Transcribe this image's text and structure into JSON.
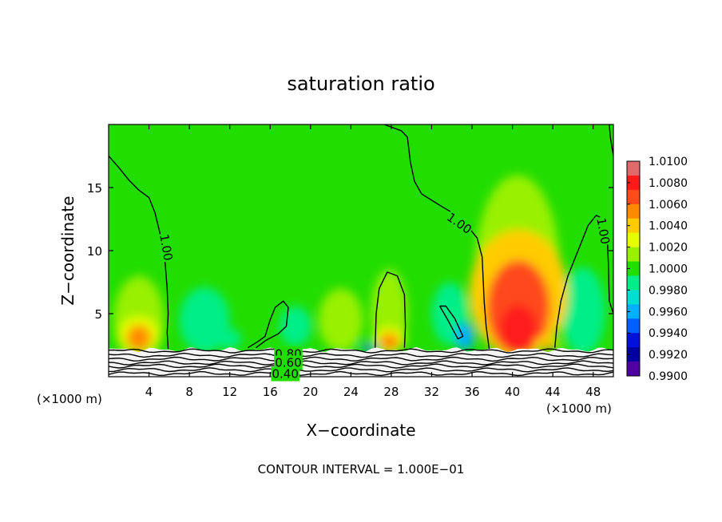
{
  "chart_data": {
    "type": "heatmap",
    "title": "saturation ratio",
    "xlabel": "X−coordinate",
    "ylabel": "Z−coordinate",
    "x_unit_left": "(×1000 m)",
    "x_unit_right": "(×1000 m)",
    "xlim": [
      0,
      50
    ],
    "ylim": [
      0,
      20
    ],
    "x_ticks": [
      4,
      8,
      12,
      16,
      20,
      24,
      28,
      32,
      36,
      40,
      44,
      48
    ],
    "y_ticks": [
      5,
      10,
      15
    ],
    "background_value": 1.0,
    "colorbar": {
      "min": 0.99,
      "max": 1.01,
      "labels": [
        "1.0100",
        "1.0080",
        "1.0060",
        "1.0040",
        "1.0020",
        "1.0000",
        "0.9980",
        "0.9960",
        "0.9940",
        "0.9920",
        "0.9900"
      ],
      "colors": [
        "#e06a6a",
        "#ff1a1a",
        "#ff4a1a",
        "#ff8a00",
        "#ffcc00",
        "#e6ff00",
        "#99f000",
        "#22dd00",
        "#00ee88",
        "#00e0d0",
        "#00b0ff",
        "#0060ff",
        "#0010dd",
        "#0000a0",
        "#5000a0"
      ]
    },
    "contours": [
      {
        "label": "1.00"
      },
      {
        "label": "1.00"
      },
      {
        "label": "1.00"
      },
      {
        "label": "0.80"
      },
      {
        "label": "0.60"
      },
      {
        "label": "0.40"
      }
    ],
    "features": [
      {
        "type": "supersaturation",
        "x": 3,
        "z_low": 2.2,
        "z_high": 4.6,
        "peak": 1.006
      },
      {
        "type": "supersaturation",
        "x": 27.8,
        "z_low": 2.2,
        "z_high": 3.8,
        "peak": 1.006
      },
      {
        "type": "supersaturation",
        "x": 40.6,
        "z_low": 2.2,
        "z_high": 11.0,
        "peak": 1.008
      },
      {
        "type": "supersaturation",
        "x": 43.5,
        "z_low": 2.2,
        "z_high": 3.0,
        "peak": 1.006
      },
      {
        "type": "subsaturation",
        "x": 25.8,
        "z_low": 2.1,
        "z_high": 2.6,
        "peak": 0.993
      },
      {
        "type": "subsaturation",
        "x": 35.3,
        "z_low": 2.2,
        "z_high": 4.2,
        "peak": 0.9955
      }
    ],
    "footer": "CONTOUR INTERVAL = 1.000E−01"
  }
}
